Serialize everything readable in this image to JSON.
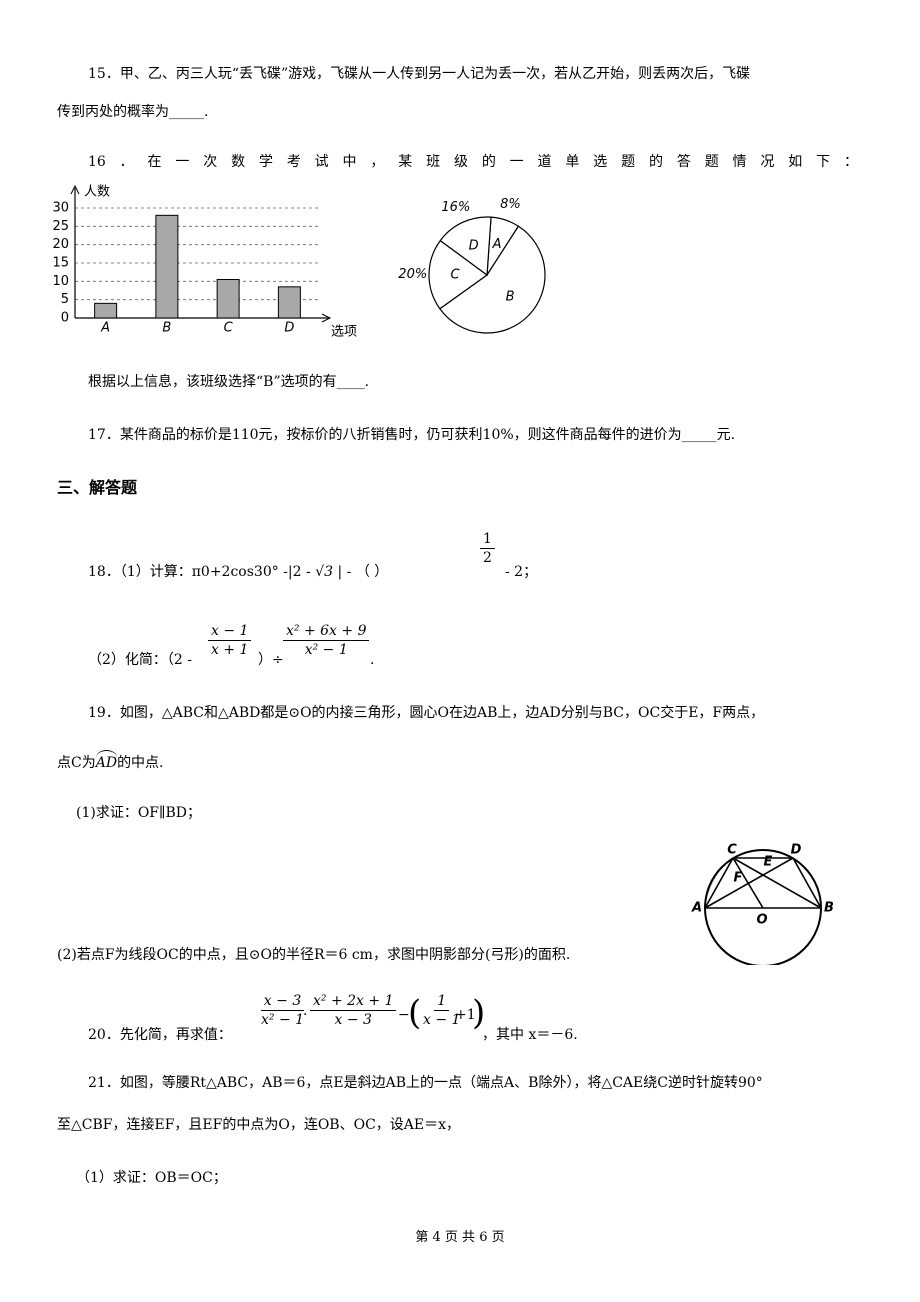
{
  "q15": {
    "line1": "15．甲、乙、丙三人玩“丢飞碟”游戏，飞碟从一人传到另一人记为丢一次，若从乙开始，则丢两次后，飞碟",
    "line2": "传到丙处的概率为_____."
  },
  "q16": {
    "text": "16．在一次数学考试中，某班级的一道单选题的答题情况如下：",
    "after": "根据以上信息，该班级选择“B”选项的有____."
  },
  "chart_data": [
    {
      "type": "bar",
      "ylabel": "人数",
      "xlabel": "选项",
      "categories": [
        "A",
        "B",
        "C",
        "D"
      ],
      "values": [
        4,
        28,
        10.5,
        8.5
      ],
      "ylim": [
        0,
        30
      ],
      "yticks": [
        0,
        5,
        10,
        15,
        20,
        25,
        30
      ],
      "grid": true,
      "color": "#a8a8a8"
    },
    {
      "type": "pie",
      "categories": [
        "A",
        "B",
        "C",
        "D"
      ],
      "values": [
        8,
        56,
        20,
        16
      ],
      "value_labels": [
        "8%",
        null,
        "20%",
        "16%"
      ],
      "color": "#ffffff"
    }
  ],
  "q17": {
    "text": "17．某件商品的标价是110元，按标价的八折销售时，仍可获利10%，则这件商品每件的进价为_____元."
  },
  "section3": "三、解答题",
  "q18": {
    "p1a": "18．（1）计算：π0+2cos30°  -|2 -",
    "sqrt": "√3",
    "p1b": "| - （      ）",
    "half_num": "1",
    "half_den": "2",
    "p1c": "- 2；",
    "p2a": "（2）化简：（2 -",
    "f1_num": "x − 1",
    "f1_den": "x + 1",
    "p2b": "）÷",
    "f2_num": "x² + 6x + 9",
    "f2_den": "x² − 1",
    "p2c": "."
  },
  "q19": {
    "line1": "19．如图，△ABC和△ABD都是⊙O的内接三角形，圆心O在边AB上，边AD分别与BC，OC交于E，F两点，",
    "line2a": "点C为",
    "arc": "AD",
    "line2b": "的中点.",
    "part1": "(1)求证：OF∥BD；",
    "part2": "(2)若点F为线段OC的中点，且⊙O的半径R＝6 cm，求图中阴影部分(弓形)的面积.",
    "labels": [
      "C",
      "E",
      "D",
      "F",
      "A",
      "O",
      "B"
    ]
  },
  "q20": {
    "lead": "20．先化简，再求值：",
    "f1_num": "x − 3",
    "f1_den": "x² − 1",
    "dot": "·",
    "f2_num": "x² + 2x + 1",
    "f2_den": "x − 3",
    "minus": "−",
    "f3_num": "1",
    "f3_den": "x − 1",
    "plus": "+1",
    "tail": "，其中 x＝－6."
  },
  "q21": {
    "line1": "21．如图，等腰Rt△ABC，AB＝6，点E是斜边AB上的一点（端点A、B除外），将△CAE绕C逆时针旋转90°",
    "line2": "至△CBF，连接EF，且EF的中点为O，连OB、OC，设AE＝x，",
    "part1": "（1）求证：OB＝OC；"
  },
  "footer": "第 4 页 共 6 页"
}
